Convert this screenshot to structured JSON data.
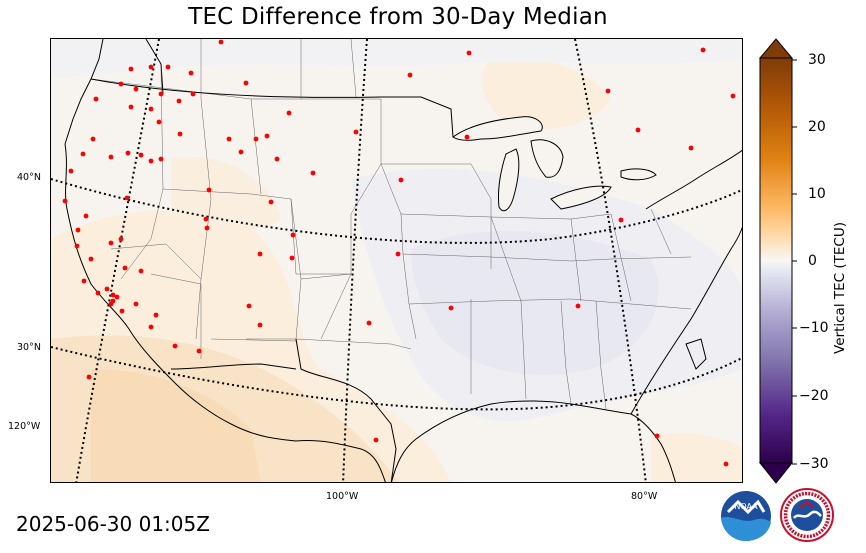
{
  "title": "TEC Difference from 30-Day Median",
  "timestamp": "2025-06-30 01:05Z",
  "colorbar": {
    "label": "Vertical TEC (TECU)",
    "ticks": [
      "30",
      "20",
      "10",
      "0",
      "−10",
      "−20",
      "−30"
    ],
    "min": -30,
    "max": 30,
    "positive_color": "#7f3b08",
    "negative_color": "#2d004b"
  },
  "graticule": {
    "latitudes": [
      "40°N",
      "30°N"
    ],
    "longitudes": [
      "120°W",
      "100°W",
      "80°W"
    ]
  },
  "logos": {
    "noaa_text": "NOAA",
    "nws_text": "NATIONAL WEATHER SERVICE"
  }
}
